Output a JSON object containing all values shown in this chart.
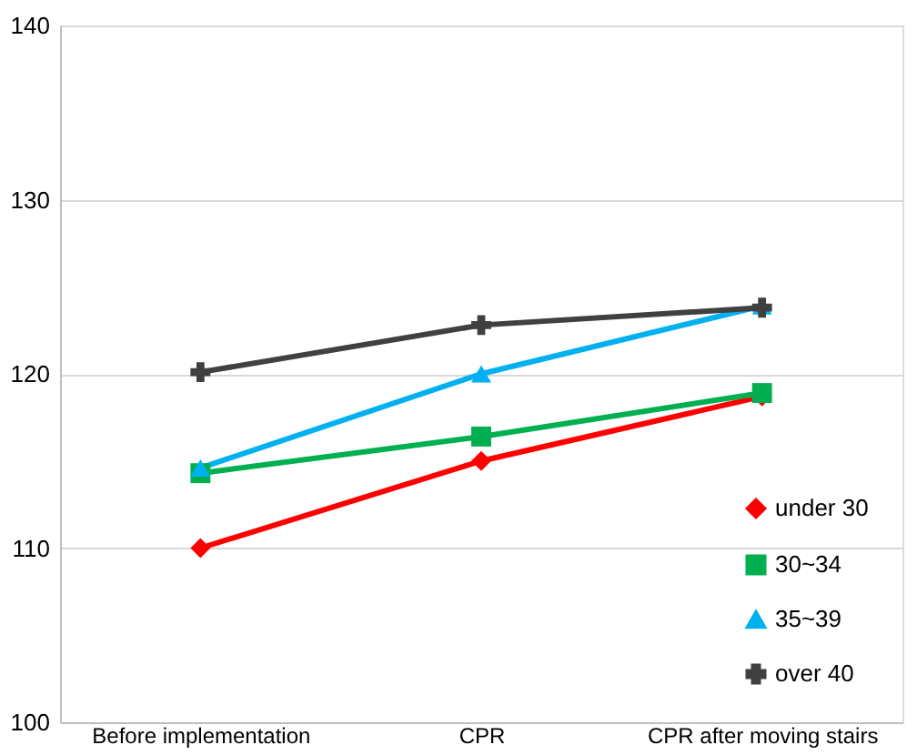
{
  "chart_data": {
    "type": "line",
    "categories": [
      "Before implementation",
      "CPR",
      "CPR after moving stairs"
    ],
    "series": [
      {
        "name": "under 30",
        "color": "#ff0000",
        "marker": "diamond",
        "values": [
          110,
          115,
          118.7
        ]
      },
      {
        "name": "30~34",
        "color": "#00b050",
        "marker": "square",
        "values": [
          114.3,
          116.4,
          118.9
        ]
      },
      {
        "name": "35~39",
        "color": "#00b0f0",
        "marker": "triangle",
        "values": [
          114.6,
          120,
          123.9
        ]
      },
      {
        "name": "over 40",
        "color": "#404040",
        "marker": "cross",
        "values": [
          120.1,
          122.8,
          123.8
        ]
      }
    ],
    "ylim": [
      100,
      140
    ],
    "yticks": [
      100,
      110,
      120,
      130,
      140
    ],
    "grid": "y",
    "legend": "bottom right"
  }
}
